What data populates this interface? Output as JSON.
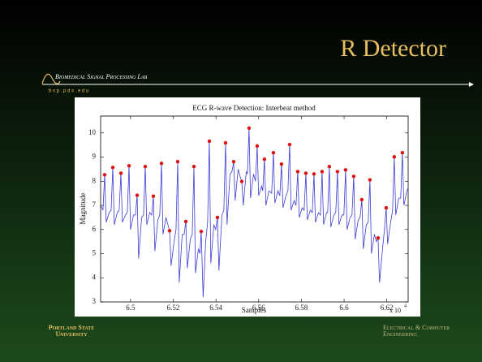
{
  "slide": {
    "title": "R Detector",
    "lab_name": "Biomedical Signal Processing Lab",
    "lab_url": "b s p . p d x . e d u",
    "footer_left": [
      "Portland State",
      "University"
    ],
    "footer_right": [
      "Electrical & Computer",
      "Engineering"
    ]
  },
  "chart_data": {
    "type": "line",
    "title": "ECG R-wave Detection: Interbeat method",
    "xlabel": "Samples",
    "ylabel": "Magnitude",
    "x_multiplier": "x 10",
    "x_multiplier_exponent": "4",
    "xlim": [
      6.486,
      6.63
    ],
    "xticks": [
      6.5,
      6.52,
      6.54,
      6.56,
      6.58,
      6.6,
      6.62
    ],
    "ylim": [
      3,
      10.7
    ],
    "yticks": [
      3,
      4,
      5,
      6,
      7,
      8,
      9,
      10
    ],
    "signal": {
      "color": "#3b3bd6",
      "x": [
        6.486,
        6.4871,
        6.4879,
        6.4886,
        6.49,
        6.4909,
        6.4917,
        6.4924,
        6.4938,
        6.4947,
        6.4955,
        6.4962,
        6.4976,
        6.4985,
        6.4993,
        6.5,
        6.5014,
        6.5023,
        6.5031,
        6.5038,
        6.5052,
        6.5061,
        6.5069,
        6.5076,
        6.509,
        6.5099,
        6.5107,
        6.5114,
        6.5128,
        6.5137,
        6.5145,
        6.5152,
        6.5166,
        6.5175,
        6.5183,
        6.519,
        6.5204,
        6.5213,
        6.5221,
        6.5228,
        6.5242,
        6.5251,
        6.5259,
        6.5266,
        6.528,
        6.5289,
        6.5297,
        6.5304,
        6.5318,
        6.5325,
        6.5331,
        6.534,
        6.5352,
        6.5361,
        6.5369,
        6.5376,
        6.539,
        6.5399,
        6.5407,
        6.5414,
        6.5428,
        6.5437,
        6.5445,
        6.5452,
        6.5466,
        6.5475,
        6.5483,
        6.549,
        6.5504,
        6.5513,
        6.5521,
        6.5528,
        6.5542,
        6.5547,
        6.5555,
        6.5562,
        6.5576,
        6.5585,
        6.5593,
        6.56,
        6.5614,
        6.5619,
        6.5627,
        6.5634,
        6.5648,
        6.5661,
        6.5669,
        6.5676,
        6.569,
        6.5699,
        6.5707,
        6.5714,
        6.5728,
        6.5737,
        6.5745,
        6.5752,
        6.5766,
        6.5775,
        6.5783,
        6.579,
        6.5804,
        6.5813,
        6.5821,
        6.5828,
        6.5842,
        6.5851,
        6.5859,
        6.5866,
        6.588,
        6.5889,
        6.5897,
        6.5904,
        6.5918,
        6.5923,
        6.5931,
        6.5938,
        6.5952,
        6.5961,
        6.5969,
        6.5976,
        6.599,
        6.5999,
        6.6007,
        6.6014,
        6.6028,
        6.6037,
        6.6045,
        6.6052,
        6.6066,
        6.6075,
        6.6083,
        6.609,
        6.6104,
        6.6113,
        6.6121,
        6.6128,
        6.6142,
        6.6151,
        6.6159,
        6.6166,
        6.618,
        6.6189,
        6.6197,
        6.6204,
        6.6218,
        6.6227,
        6.6235,
        6.6242,
        6.6256,
        6.6265,
        6.6273,
        6.628,
        6.6294,
        6.63
      ],
      "values": [
        7.0,
        6.8,
        8.27,
        6.3,
        6.7,
        6.8,
        8.57,
        6.2,
        6.7,
        6.8,
        8.33,
        6.3,
        6.6,
        6.7,
        8.64,
        6.0,
        6.6,
        6.6,
        7.42,
        4.8,
        6.5,
        6.6,
        8.61,
        6.2,
        6.7,
        6.6,
        7.38,
        5.1,
        6.4,
        6.6,
        8.74,
        5.8,
        6.5,
        6.2,
        5.95,
        4.5,
        5.5,
        6.0,
        8.81,
        3.8,
        5.8,
        5.8,
        6.33,
        4.4,
        5.6,
        5.8,
        8.61,
        4.2,
        5.2,
        5.0,
        5.92,
        3.2,
        5.5,
        6.3,
        9.66,
        4.6,
        6.2,
        6.0,
        6.5,
        4.3,
        6.6,
        6.8,
        9.59,
        6.2,
        8.3,
        8.4,
        8.81,
        7.2,
        8.5,
        8.2,
        7.99,
        7.0,
        8.4,
        8.3,
        10.2,
        7.3,
        8.3,
        8.0,
        9.46,
        7.4,
        7.8,
        7.6,
        8.91,
        7.0,
        7.6,
        7.5,
        9.18,
        7.1,
        7.6,
        7.4,
        8.71,
        6.9,
        7.4,
        7.6,
        9.52,
        6.8,
        7.2,
        7.0,
        8.4,
        6.5,
        6.9,
        6.8,
        8.33,
        6.4,
        6.8,
        6.7,
        8.3,
        6.3,
        6.7,
        6.6,
        8.4,
        6.2,
        6.7,
        6.7,
        8.61,
        6.1,
        6.6,
        6.7,
        8.4,
        6.2,
        6.6,
        6.6,
        8.47,
        6.0,
        6.5,
        6.6,
        8.2,
        5.6,
        6.4,
        6.5,
        7.24,
        5.2,
        6.2,
        6.3,
        8.06,
        5.0,
        5.8,
        5.5,
        5.65,
        3.8,
        5.2,
        6.0,
        6.9,
        5.4,
        6.3,
        6.8,
        9.01,
        6.6,
        7.3,
        7.3,
        9.18,
        7.0,
        7.6,
        7.7
      ]
    },
    "peaks": {
      "color": "#e01010",
      "x": [
        6.4879,
        6.4917,
        6.4955,
        6.4993,
        6.5031,
        6.5069,
        6.5107,
        6.5145,
        6.5183,
        6.5221,
        6.5259,
        6.5297,
        6.5331,
        6.5369,
        6.5407,
        6.5445,
        6.5483,
        6.5521,
        6.5555,
        6.5593,
        6.5627,
        6.5669,
        6.5707,
        6.5745,
        6.5783,
        6.5821,
        6.5859,
        6.5897,
        6.5931,
        6.5969,
        6.6007,
        6.6045,
        6.6083,
        6.6121,
        6.6159,
        6.6197,
        6.6235,
        6.6273
      ],
      "values": [
        8.27,
        8.57,
        8.33,
        8.64,
        7.42,
        8.61,
        7.38,
        8.74,
        5.95,
        8.81,
        6.33,
        8.61,
        5.92,
        9.66,
        6.5,
        9.59,
        8.81,
        7.99,
        10.2,
        9.46,
        8.91,
        9.18,
        8.71,
        9.52,
        8.4,
        8.33,
        8.3,
        8.4,
        8.61,
        8.4,
        8.47,
        8.2,
        7.24,
        8.06,
        5.65,
        6.9,
        9.01,
        9.18
      ]
    }
  }
}
